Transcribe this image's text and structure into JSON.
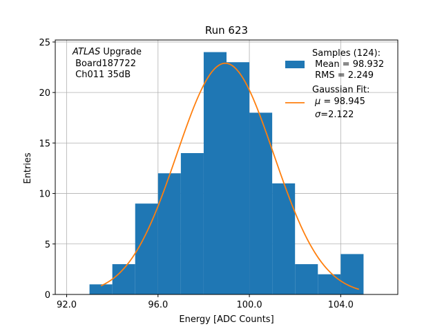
{
  "chart_data": {
    "type": "bar",
    "title": "Run 623",
    "xlabel": "Energy [ADC Counts]",
    "ylabel": "Entries",
    "xlim": [
      91.5,
      106.5
    ],
    "ylim": [
      0,
      25.2
    ],
    "xticks": [
      92.0,
      96.0,
      100.0,
      104.0
    ],
    "xtick_labels": [
      "92.0",
      "96.0",
      "100.0",
      "104.0"
    ],
    "yticks": [
      0,
      5,
      10,
      15,
      20,
      25
    ],
    "ytick_labels": [
      "0",
      "5",
      "10",
      "15",
      "20",
      "25"
    ],
    "grid": true,
    "histogram": {
      "name": "Samples (124):",
      "color": "#1f77b4",
      "bin_edges": [
        93.0,
        94.0,
        95.0,
        96.0,
        97.0,
        98.0,
        99.0,
        100.0,
        101.0,
        102.0,
        103.0,
        104.0,
        105.0
      ],
      "counts": [
        1,
        3,
        9,
        12,
        14,
        24,
        23,
        18,
        11,
        3,
        2,
        4
      ]
    },
    "fit": {
      "name": "Gaussian Fit:",
      "color": "#ff7f0e",
      "mu": 98.945,
      "sigma": 2.122,
      "amplitude": 22.9,
      "x_range": [
        93.5,
        104.8
      ]
    },
    "legend_placement": "top-right",
    "legend": {
      "hist_lines": [
        "Samples (124):",
        " Mean = 98.932",
        " RMS = 2.249"
      ],
      "fit_title": "Gaussian Fit:",
      "fit_mu_symbol": "μ",
      "fit_mu_value": " = 98.945",
      "fit_sigma_symbol": "σ",
      "fit_sigma_value": "=2.122"
    },
    "annotation": {
      "italic": "ATLAS",
      "line1_rest": " Upgrade",
      "line2": " Board187722",
      "line3": " Ch011 35dB"
    }
  }
}
